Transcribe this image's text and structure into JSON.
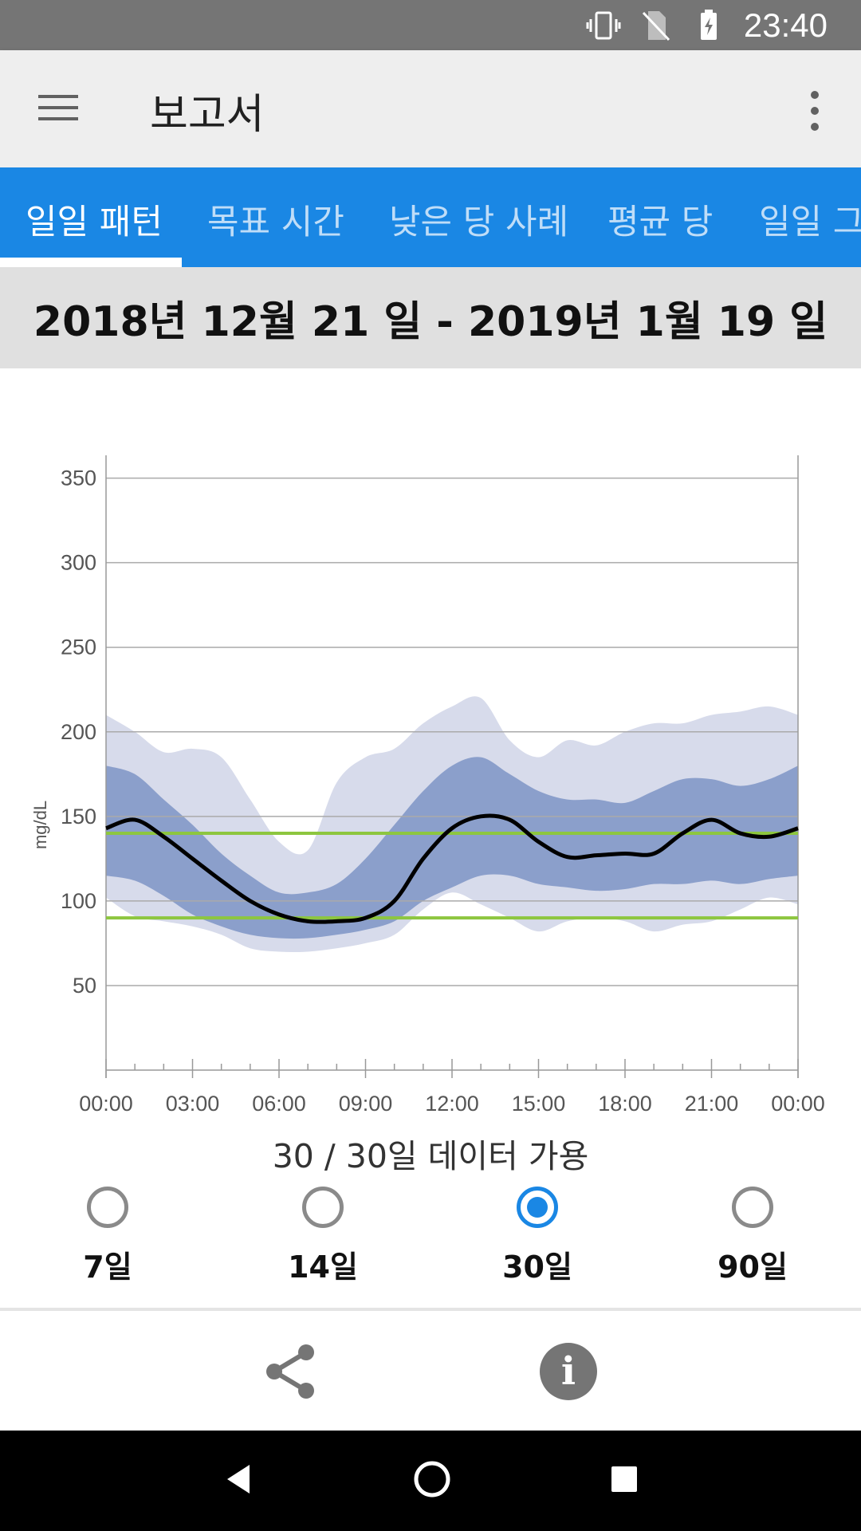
{
  "status_bar": {
    "time": "23:40",
    "icons": [
      "vibrate-icon",
      "no-sim-icon",
      "battery-charging-icon"
    ]
  },
  "app_bar": {
    "title": "보고서",
    "menu_icon": "hamburger-menu-icon",
    "overflow_icon": "more-vert-icon"
  },
  "tabs": [
    {
      "label": "일일 패턴",
      "active": true
    },
    {
      "label": "목표 시간",
      "active": false
    },
    {
      "label": "낮은 당 사례",
      "active": false
    },
    {
      "label": "평균 당",
      "active": false
    },
    {
      "label": "일일 그",
      "active": false
    }
  ],
  "date_range": "2018년 12월 21 일 - 2019년 1월 19 일",
  "chart_data": {
    "type": "area",
    "ylabel": "mg/dL",
    "xlabel": "",
    "ylim": [
      0,
      355
    ],
    "y_ticks": [
      50,
      100,
      150,
      200,
      250,
      300,
      350
    ],
    "x_ticks": [
      "00:00",
      "03:00",
      "06:00",
      "09:00",
      "12:00",
      "15:00",
      "18:00",
      "21:00",
      "00:00"
    ],
    "x_hours": [
      0,
      1,
      2,
      3,
      4,
      5,
      6,
      7,
      8,
      9,
      10,
      11,
      12,
      13,
      14,
      15,
      16,
      17,
      18,
      19,
      20,
      21,
      22,
      23,
      24
    ],
    "series": [
      {
        "role": "outer_high",
        "values": [
          210,
          200,
          188,
          190,
          185,
          160,
          135,
          130,
          170,
          185,
          190,
          205,
          215,
          220,
          195,
          185,
          195,
          192,
          200,
          205,
          205,
          210,
          212,
          215,
          210
        ]
      },
      {
        "role": "inner_high",
        "values": [
          180,
          175,
          160,
          145,
          128,
          115,
          105,
          105,
          110,
          125,
          145,
          165,
          180,
          185,
          175,
          165,
          160,
          160,
          158,
          165,
          172,
          172,
          168,
          172,
          180
        ]
      },
      {
        "role": "median",
        "values": [
          143,
          148,
          138,
          125,
          112,
          100,
          92,
          88,
          88,
          90,
          100,
          125,
          143,
          150,
          148,
          135,
          126,
          127,
          128,
          128,
          140,
          148,
          140,
          138,
          143
        ]
      },
      {
        "role": "inner_low",
        "values": [
          115,
          112,
          103,
          92,
          85,
          80,
          78,
          78,
          80,
          83,
          88,
          100,
          108,
          115,
          115,
          110,
          108,
          106,
          107,
          110,
          110,
          112,
          110,
          113,
          115
        ]
      },
      {
        "role": "outer_low",
        "values": [
          102,
          91,
          88,
          85,
          80,
          72,
          70,
          70,
          72,
          75,
          80,
          95,
          105,
          98,
          90,
          82,
          88,
          90,
          88,
          82,
          86,
          88,
          95,
          102,
          98
        ]
      }
    ],
    "target_range": [
      90,
      140
    ],
    "colors": {
      "outer_band": "#d7dbeb",
      "inner_band": "#8b9fcb",
      "median": "#000000",
      "target": "#8dc63f",
      "grid": "#aaaaaa"
    }
  },
  "data_availability": "30 / 30일 데이터 가용",
  "periods": [
    {
      "label": "7일",
      "checked": false
    },
    {
      "label": "14일",
      "checked": false
    },
    {
      "label": "30일",
      "checked": true
    },
    {
      "label": "90일",
      "checked": false
    }
  ],
  "actions": {
    "share_icon": "share-icon",
    "info_glyph": "i"
  },
  "nav_bar": {
    "icons": [
      "back-icon",
      "home-icon",
      "recents-icon"
    ]
  }
}
